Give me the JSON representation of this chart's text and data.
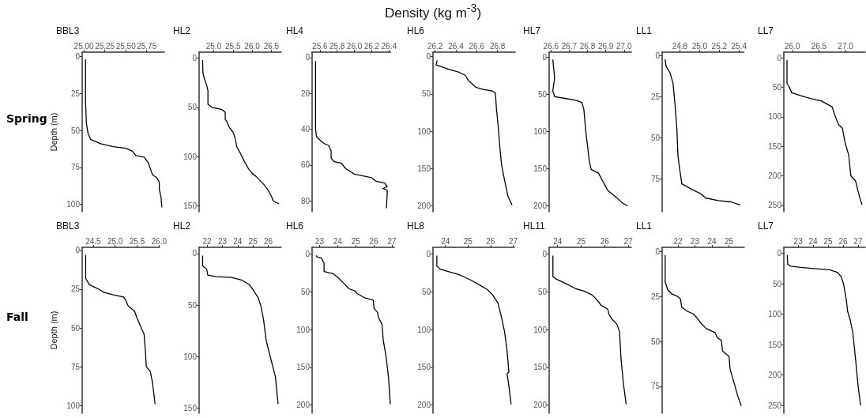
{
  "chart_data": [
    {
      "type": "line",
      "title": "BBL3",
      "ylabel": "Depth (m)",
      "annotations": [
        "Spring"
      ],
      "marker": "none",
      "xlim": [
        24.98,
        25.96
      ],
      "xticks": [
        {
          "value": 25,
          "label": "25.00"
        },
        {
          "value": 25.25,
          "label": "25.25"
        },
        {
          "value": 25.5,
          "label": "25.50"
        },
        {
          "value": 25.75,
          "label": "25.75"
        }
      ],
      "ylim": [
        105,
        -3
      ],
      "yticks": [
        0,
        25,
        50,
        75,
        100
      ],
      "series": [
        {
          "color": "#000000",
          "x": [
            25.02,
            25.02,
            25.03,
            25.05,
            25.08,
            25.2,
            25.35,
            25.5,
            25.58,
            25.62,
            25.72,
            25.77,
            25.8,
            25.82,
            25.87,
            25.9,
            25.9,
            25.92,
            25.93
          ],
          "values": [
            2,
            30,
            45,
            52,
            56,
            59,
            61,
            62,
            64,
            67,
            68,
            72,
            77,
            80,
            82,
            85,
            90,
            95,
            102
          ]
        }
      ]
    },
    {
      "type": "line",
      "title": "HL2",
      "marker": "none",
      "xlim": [
        24.62,
        26.76
      ],
      "xticks": [
        {
          "value": 25,
          "label": "25.0"
        },
        25.5,
        {
          "value": 26,
          "label": "26.0"
        },
        26.5
      ],
      "ylim": [
        156,
        -6
      ],
      "yticks": [
        0,
        50,
        100,
        150
      ],
      "series": [
        {
          "color": "#000000",
          "x": [
            24.71,
            24.72,
            24.75,
            24.82,
            24.85,
            24.85,
            24.95,
            25.2,
            25.3,
            25.3,
            25.35,
            25.4,
            25.5,
            25.55,
            25.6,
            25.7,
            25.8,
            25.9,
            26.0,
            26.1,
            26.2,
            26.3,
            26.4,
            26.5,
            26.55,
            26.7
          ],
          "values": [
            2,
            15,
            20,
            28,
            33,
            47,
            50,
            52,
            55,
            62,
            65,
            70,
            75,
            80,
            90,
            97,
            105,
            112,
            117,
            120,
            124,
            128,
            133,
            140,
            145,
            148
          ]
        }
      ]
    },
    {
      "type": "line",
      "title": "HL4",
      "marker": "none",
      "xlim": [
        25.51,
        26.42
      ],
      "xticks": [
        25.6,
        25.8,
        {
          "value": 26,
          "label": "26.0"
        },
        26.2,
        26.4
      ],
      "ylim": [
        86,
        -3
      ],
      "yticks": [
        0,
        20,
        40,
        60,
        80
      ],
      "series": [
        {
          "color": "#000000",
          "x": [
            25.55,
            25.55,
            25.55,
            25.56,
            25.6,
            25.65,
            25.7,
            25.73,
            25.73,
            25.76,
            25.85,
            25.9,
            26.0,
            26.1,
            26.2,
            26.25,
            26.35,
            26.38,
            26.33,
            26.38,
            26.38,
            26.37
          ],
          "values": [
            2,
            20,
            40,
            44,
            46,
            48,
            49,
            52,
            56,
            58,
            59,
            62,
            65,
            66,
            67,
            69,
            70,
            72,
            73,
            74,
            76,
            84
          ]
        }
      ]
    },
    {
      "type": "line",
      "title": "HL6",
      "xlabel": "Density (kg m$^{-3}$)",
      "marker": "none",
      "xlim": [
        26.18,
        26.97
      ],
      "xticks": [
        26.2,
        26.4,
        26.6,
        26.8
      ],
      "ylim": [
        208,
        -6
      ],
      "yticks": [
        0,
        50,
        100,
        150,
        200
      ],
      "series": [
        {
          "color": "#000000",
          "x": [
            26.22,
            26.21,
            26.33,
            26.43,
            26.49,
            26.52,
            26.56,
            26.59,
            26.66,
            26.75,
            26.78,
            26.79,
            26.81,
            26.82,
            26.84,
            26.87,
            26.9,
            26.94
          ],
          "values": [
            5,
            11,
            17,
            21,
            25,
            32,
            37,
            41,
            44,
            46,
            49,
            70,
            98,
            118,
            146,
            167,
            187,
            199
          ]
        }
      ]
    },
    {
      "type": "line",
      "title": "HL7",
      "marker": "none",
      "xlim": [
        26.59,
        27.04
      ],
      "xticks": [
        26.6,
        26.7,
        26.8,
        26.9,
        {
          "value": 27,
          "label": "27.0"
        }
      ],
      "ylim": [
        208,
        -7
      ],
      "yticks": [
        0,
        50,
        100,
        150,
        200
      ],
      "series": [
        {
          "color": "#000000",
          "x": [
            26.61,
            26.62,
            26.61,
            26.62,
            26.67,
            26.74,
            26.77,
            26.78,
            26.79,
            26.8,
            26.81,
            26.82,
            26.86,
            26.88,
            26.91,
            26.96,
            26.99,
            27.02
          ],
          "values": [
            3,
            28,
            45,
            53,
            55,
            58,
            61,
            70,
            98,
            119,
            140,
            151,
            156,
            165,
            179,
            189,
            196,
            200
          ]
        }
      ]
    },
    {
      "type": "line",
      "title": "LL1",
      "marker": "none",
      "xlim": [
        24.62,
        25.45
      ],
      "xticks": [
        24.8,
        {
          "value": 25,
          "label": "25.0"
        },
        25.2,
        25.4
      ],
      "ylim": [
        95,
        -2
      ],
      "yticks": [
        0,
        25,
        50,
        75
      ],
      "series": [
        {
          "color": "#000000",
          "x": [
            24.65,
            24.66,
            24.7,
            24.73,
            24.75,
            24.77,
            24.78,
            24.8,
            24.82,
            24.91,
            25.01,
            25.06,
            25.19,
            25.32,
            25.41
          ],
          "values": [
            2.4,
            6.6,
            10.5,
            16.8,
            29.3,
            45,
            60.7,
            70,
            78,
            81,
            84,
            86.6,
            88.2,
            89,
            90.9
          ]
        }
      ]
    },
    {
      "type": "line",
      "title": "LL7",
      "marker": "none",
      "xlim": [
        25.84,
        27.37
      ],
      "xticks": [
        {
          "value": 26,
          "label": "26.0"
        },
        26.5,
        {
          "value": 27,
          "label": "27.0"
        }
      ],
      "ylim": [
        261,
        -10
      ],
      "yticks": [
        0,
        50,
        100,
        150,
        200,
        250
      ],
      "series": [
        {
          "color": "#000000",
          "x": [
            25.9,
            25.9,
            25.94,
            25.99,
            26.16,
            26.35,
            26.55,
            26.65,
            26.75,
            26.79,
            26.87,
            26.94,
            26.99,
            27.06,
            27.1,
            27.19,
            27.26,
            27.31
          ],
          "values": [
            3,
            43,
            49,
            59,
            64,
            69,
            73,
            78,
            83,
            95,
            113,
            119,
            143,
            165,
            200,
            209,
            235,
            249
          ]
        }
      ]
    },
    {
      "type": "line",
      "title": "BBL3",
      "ylabel": "Depth (m)",
      "annotations": [
        "Fall"
      ],
      "marker": "none",
      "xlim": [
        24.25,
        26.01
      ],
      "xticks": [
        24.5,
        {
          "value": 25,
          "label": "25.0"
        },
        25.5,
        {
          "value": 26,
          "label": "26.0"
        }
      ],
      "ylim": [
        105,
        -2
      ],
      "yticks": [
        0,
        25,
        50,
        75,
        100
      ],
      "series": [
        {
          "color": "#000000",
          "x": [
            24.33,
            24.33,
            24.41,
            24.52,
            24.63,
            24.74,
            24.96,
            25.19,
            25.24,
            25.3,
            25.44,
            25.49,
            25.58,
            25.66,
            25.69,
            25.71,
            25.8,
            25.85,
            25.91
          ],
          "values": [
            3,
            18,
            22,
            23.5,
            25,
            27,
            28.6,
            30,
            32,
            36,
            39,
            43,
            49,
            54,
            65,
            75,
            78,
            85,
            99
          ]
        }
      ]
    },
    {
      "type": "line",
      "title": "HL2",
      "marker": "none",
      "xlim": [
        21.48,
        26.85
      ],
      "xticks": [
        22,
        23,
        24,
        25,
        26
      ],
      "ylim": [
        155,
        -6
      ],
      "yticks": [
        0,
        50,
        100,
        150
      ],
      "series": [
        {
          "color": "#000000",
          "x": [
            21.71,
            21.71,
            21.97,
            22.05,
            22.57,
            23.61,
            24.3,
            24.74,
            25.0,
            25.34,
            25.52,
            25.69,
            25.86,
            26.04,
            26.3,
            26.47,
            26.64
          ],
          "values": [
            2,
            12,
            15,
            21,
            22.4,
            23.2,
            26,
            30,
            35,
            43,
            51,
            64,
            84,
            95,
            110,
            120,
            146
          ]
        }
      ]
    },
    {
      "type": "line",
      "title": "HL6",
      "marker": "none",
      "xlim": [
        22.59,
        27.13
      ],
      "xticks": [
        23,
        24,
        25,
        26,
        27
      ],
      "ylim": [
        211,
        -9
      ],
      "yticks": [
        0,
        50,
        100,
        150,
        200
      ],
      "series": [
        {
          "color": "#000000",
          "x": [
            22.81,
            22.88,
            23.1,
            23.25,
            23.25,
            23.76,
            23.97,
            24.27,
            24.63,
            24.99,
            25.06,
            25.5,
            25.97,
            26.01,
            26.2,
            26.26,
            26.45,
            26.52,
            26.67,
            26.81,
            26.91
          ],
          "values": [
            2,
            4,
            5,
            12,
            23,
            26,
            30,
            37,
            46,
            49,
            52,
            58,
            61,
            72,
            77,
            84,
            93,
            114,
            135,
            163,
            199
          ]
        }
      ]
    },
    {
      "type": "line",
      "title": "HL8",
      "marker": "none",
      "xlim": [
        23.45,
        27.05
      ],
      "xticks": [
        24,
        25,
        26,
        27
      ],
      "ylim": [
        211,
        -9
      ],
      "yticks": [
        0,
        50,
        100,
        150,
        200
      ],
      "series": [
        {
          "color": "#000000",
          "x": [
            23.62,
            23.62,
            23.77,
            24.12,
            24.58,
            24.81,
            25.16,
            25.57,
            25.86,
            26.09,
            26.33,
            26.5,
            26.62,
            26.73,
            26.81,
            26.73,
            26.79,
            26.91
          ],
          "values": [
            2,
            16,
            20,
            23,
            27,
            30,
            35,
            42,
            47,
            54,
            65,
            86,
            103,
            128,
            156,
            159,
            170,
            199
          ]
        }
      ]
    },
    {
      "type": "line",
      "title": "HL11",
      "marker": "none",
      "xlim": [
        23.64,
        27.13
      ],
      "xticks": [
        24,
        25,
        26,
        27
      ],
      "ylim": [
        211,
        -9
      ],
      "yticks": [
        0,
        50,
        100,
        150,
        200
      ],
      "series": [
        {
          "color": "#000000",
          "x": [
            23.8,
            23.8,
            23.94,
            24.34,
            24.78,
            25.12,
            25.46,
            25.68,
            25.85,
            26.13,
            26.18,
            26.3,
            26.52,
            26.63,
            26.69,
            26.8,
            26.91
          ],
          "values": [
            2,
            30,
            33,
            39,
            46,
            49,
            54,
            61,
            68,
            73,
            80,
            86,
            93,
            103,
            138,
            173,
            199
          ]
        }
      ]
    },
    {
      "type": "line",
      "title": "LL1",
      "marker": "none",
      "xlim": [
        21.07,
        25.9
      ],
      "xticks": [
        22,
        23,
        24,
        25
      ],
      "ylim": [
        90,
        -2.5
      ],
      "yticks": [
        0,
        25,
        50,
        75
      ],
      "series": [
        {
          "color": "#000000",
          "x": [
            21.25,
            21.25,
            21.4,
            21.63,
            22.0,
            22.15,
            22.22,
            22.52,
            22.9,
            23.12,
            23.35,
            23.65,
            24.17,
            24.32,
            24.55,
            24.62,
            25.0,
            25.07,
            25.3,
            25.52,
            25.72
          ],
          "values": [
            1.9,
            16.8,
            21.2,
            23.4,
            25,
            26.4,
            30.9,
            33,
            34.6,
            36.8,
            39.8,
            42.7,
            45,
            47.9,
            49.4,
            55.3,
            58.3,
            65.7,
            73.1,
            80.6,
            85.8
          ]
        }
      ]
    },
    {
      "type": "line",
      "title": "LL7",
      "marker": "none",
      "xlim": [
        22.04,
        27.48
      ],
      "xticks": [
        23,
        24,
        25,
        26,
        27
      ],
      "ylim": [
        263,
        -10
      ],
      "yticks": [
        0,
        50,
        100,
        150,
        200,
        250
      ],
      "series": [
        {
          "color": "#000000",
          "x": [
            22.27,
            22.3,
            22.48,
            23.17,
            24.04,
            25.09,
            25.61,
            25.87,
            26.04,
            26.22,
            26.3,
            26.48,
            26.65,
            26.83,
            27.0,
            27.17
          ],
          "values": [
            3,
            18,
            21,
            23,
            25,
            27,
            31,
            38,
            51,
            77,
            95,
            110,
            130,
            173,
            217,
            250
          ]
        }
      ]
    }
  ]
}
